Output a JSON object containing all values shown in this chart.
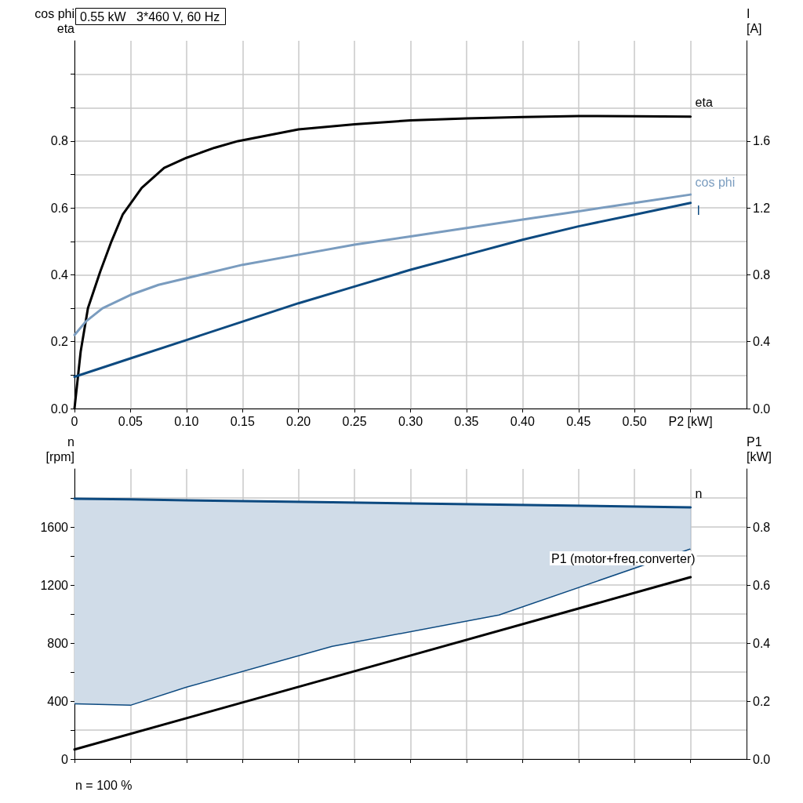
{
  "chart_data": [
    {
      "type": "line",
      "title": "0.55 kW   3*460 V, 60 Hz",
      "ylabel": "cos phi\neta",
      "y2label": "I\n[A]",
      "xlim": [
        0,
        0.6
      ],
      "xticks": [
        0,
        0.05,
        {
          "value": 0.1,
          "label": "0.10"
        },
        0.15,
        {
          "value": 0.2,
          "label": "0.20"
        },
        0.25,
        {
          "value": 0.3,
          "label": "0.30"
        },
        0.35,
        {
          "value": 0.4,
          "label": "0.40"
        },
        0.45,
        {
          "value": 0.5,
          "label": "0.50"
        },
        {
          "value": 0.55,
          "label": "P2 [kW]"
        }
      ],
      "ylim": [
        0,
        1.1
      ],
      "yticks": [
        {
          "value": 0,
          "label": "0.0"
        },
        {
          "value": 0.1,
          "label": null
        },
        0.2,
        {
          "value": 0.3,
          "label": null
        },
        0.4,
        {
          "value": 0.5,
          "label": null
        },
        0.6,
        {
          "value": 0.7,
          "label": null
        },
        0.8,
        {
          "value": 0.9,
          "label": null
        },
        {
          "value": 1.0,
          "label": null
        }
      ],
      "y2lim": [
        0,
        2.2
      ],
      "y2ticks": [
        {
          "value": 0,
          "label": "0.0"
        },
        0.4,
        0.8,
        1.2,
        1.6
      ],
      "grid": true,
      "legend": false,
      "marker": "none",
      "line_style": "solid",
      "series": [
        {
          "name": "eta",
          "color": "#000000",
          "x": [
            0,
            0.0055,
            0.012,
            0.023,
            0.033,
            0.043,
            0.06,
            0.08,
            0.1,
            0.125,
            0.146,
            0.2,
            0.25,
            0.3,
            0.35,
            0.4,
            0.45,
            0.5,
            0.55
          ],
          "values": [
            0,
            0.17,
            0.3,
            0.41,
            0.5,
            0.58,
            0.66,
            0.72,
            0.75,
            0.78,
            0.8,
            0.835,
            0.85,
            0.862,
            0.868,
            0.872,
            0.875,
            0.874,
            0.873
          ]
        },
        {
          "name": "cos phi",
          "color": "#7a9cbf",
          "x": [
            0,
            0.01,
            0.025,
            0.05,
            0.075,
            0.1,
            0.15,
            0.2,
            0.25,
            0.3,
            0.35,
            0.4,
            0.45,
            0.5,
            0.55
          ],
          "values": [
            0.22,
            0.26,
            0.3,
            0.34,
            0.37,
            0.39,
            0.43,
            0.46,
            0.49,
            0.515,
            0.54,
            0.565,
            0.59,
            0.615,
            0.64
          ]
        },
        {
          "name": "I",
          "color": "#0d4a80",
          "axis": "y2",
          "x": [
            0,
            0.05,
            0.1,
            0.15,
            0.2,
            0.25,
            0.3,
            0.35,
            0.4,
            0.45,
            0.5,
            0.55
          ],
          "values": [
            0.19,
            0.3,
            0.41,
            0.52,
            0.63,
            0.73,
            0.83,
            0.92,
            1.01,
            1.09,
            1.16,
            1.23
          ]
        }
      ]
    },
    {
      "type": "line",
      "ylabel": "n\n[rpm]",
      "y2label": "P1\n[kW]",
      "annotations": [
        "n = 100 %"
      ],
      "xlim": [
        0,
        0.6
      ],
      "xticks": [
        {
          "value": 0,
          "label": null
        },
        {
          "value": 0.05,
          "label": null
        },
        {
          "value": 0.1,
          "label": null
        },
        {
          "value": 0.15,
          "label": null
        },
        {
          "value": 0.2,
          "label": null
        },
        {
          "value": 0.25,
          "label": null
        },
        {
          "value": 0.3,
          "label": null
        },
        {
          "value": 0.35,
          "label": null
        },
        {
          "value": 0.4,
          "label": null
        },
        {
          "value": 0.45,
          "label": null
        },
        {
          "value": 0.5,
          "label": null
        },
        {
          "value": 0.55,
          "label": null
        }
      ],
      "ylim": [
        0,
        2000
      ],
      "yticks": [
        0,
        {
          "value": 200,
          "label": null
        },
        400,
        {
          "value": 600,
          "label": null
        },
        800,
        {
          "value": 1000,
          "label": null
        },
        1200,
        {
          "value": 1400,
          "label": null
        },
        1600,
        {
          "value": 1800,
          "label": null
        }
      ],
      "y2lim": [
        0,
        1.0
      ],
      "y2ticks": [
        {
          "value": 0,
          "label": "0.0"
        },
        0.2,
        0.4,
        0.6,
        0.8
      ],
      "tick_labels": "y",
      "grid": true,
      "legend": false,
      "marker": "none",
      "line_style": "solid",
      "series": [
        {
          "name": "n",
          "color": "#0d4a80",
          "x": [
            0,
            0.05,
            0.1,
            0.23,
            0.379,
            0.55
          ],
          "values": [
            1795,
            1790,
            1784,
            1770,
            1754,
            1735
          ],
          "lower": [
            381,
            371,
            496,
            777,
            993,
            1449
          ],
          "upper": [
            1795,
            1790,
            1784,
            1770,
            1754,
            1735
          ]
        },
        {
          "name": "P1 (motor+freq.converter)",
          "color": "#000000",
          "axis": "y2",
          "x": [
            0,
            0.55
          ],
          "values": [
            0.033,
            0.627
          ]
        }
      ]
    }
  ]
}
